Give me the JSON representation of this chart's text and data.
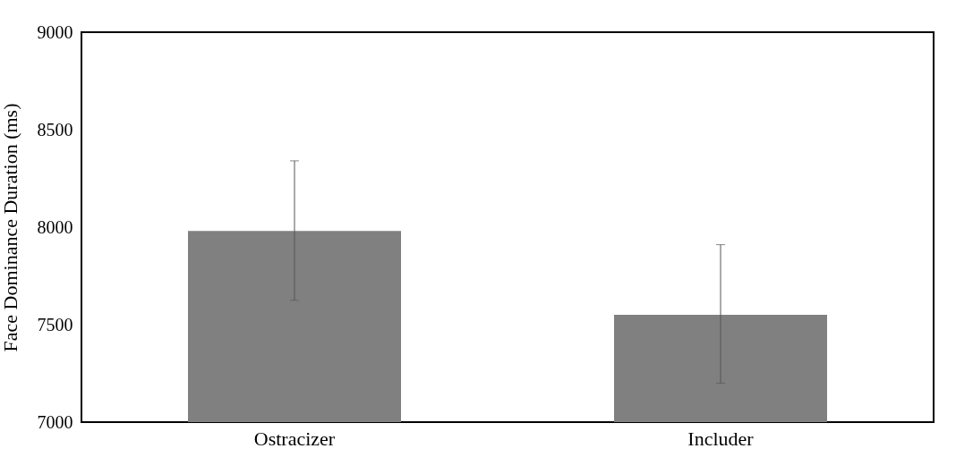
{
  "chart_data": {
    "type": "bar",
    "ylabel": "Face Dominance Duration (ms)",
    "categories": [
      "Ostracizer",
      "Includer"
    ],
    "values": [
      7980,
      7550
    ],
    "color": "#808080",
    "errors": [
      [
        7625,
        8340
      ],
      [
        7200,
        7910
      ]
    ],
    "ylim": [
      7000,
      9000
    ],
    "yticks": [
      7000,
      7500,
      8000,
      8500,
      9000
    ],
    "grid": false
  }
}
